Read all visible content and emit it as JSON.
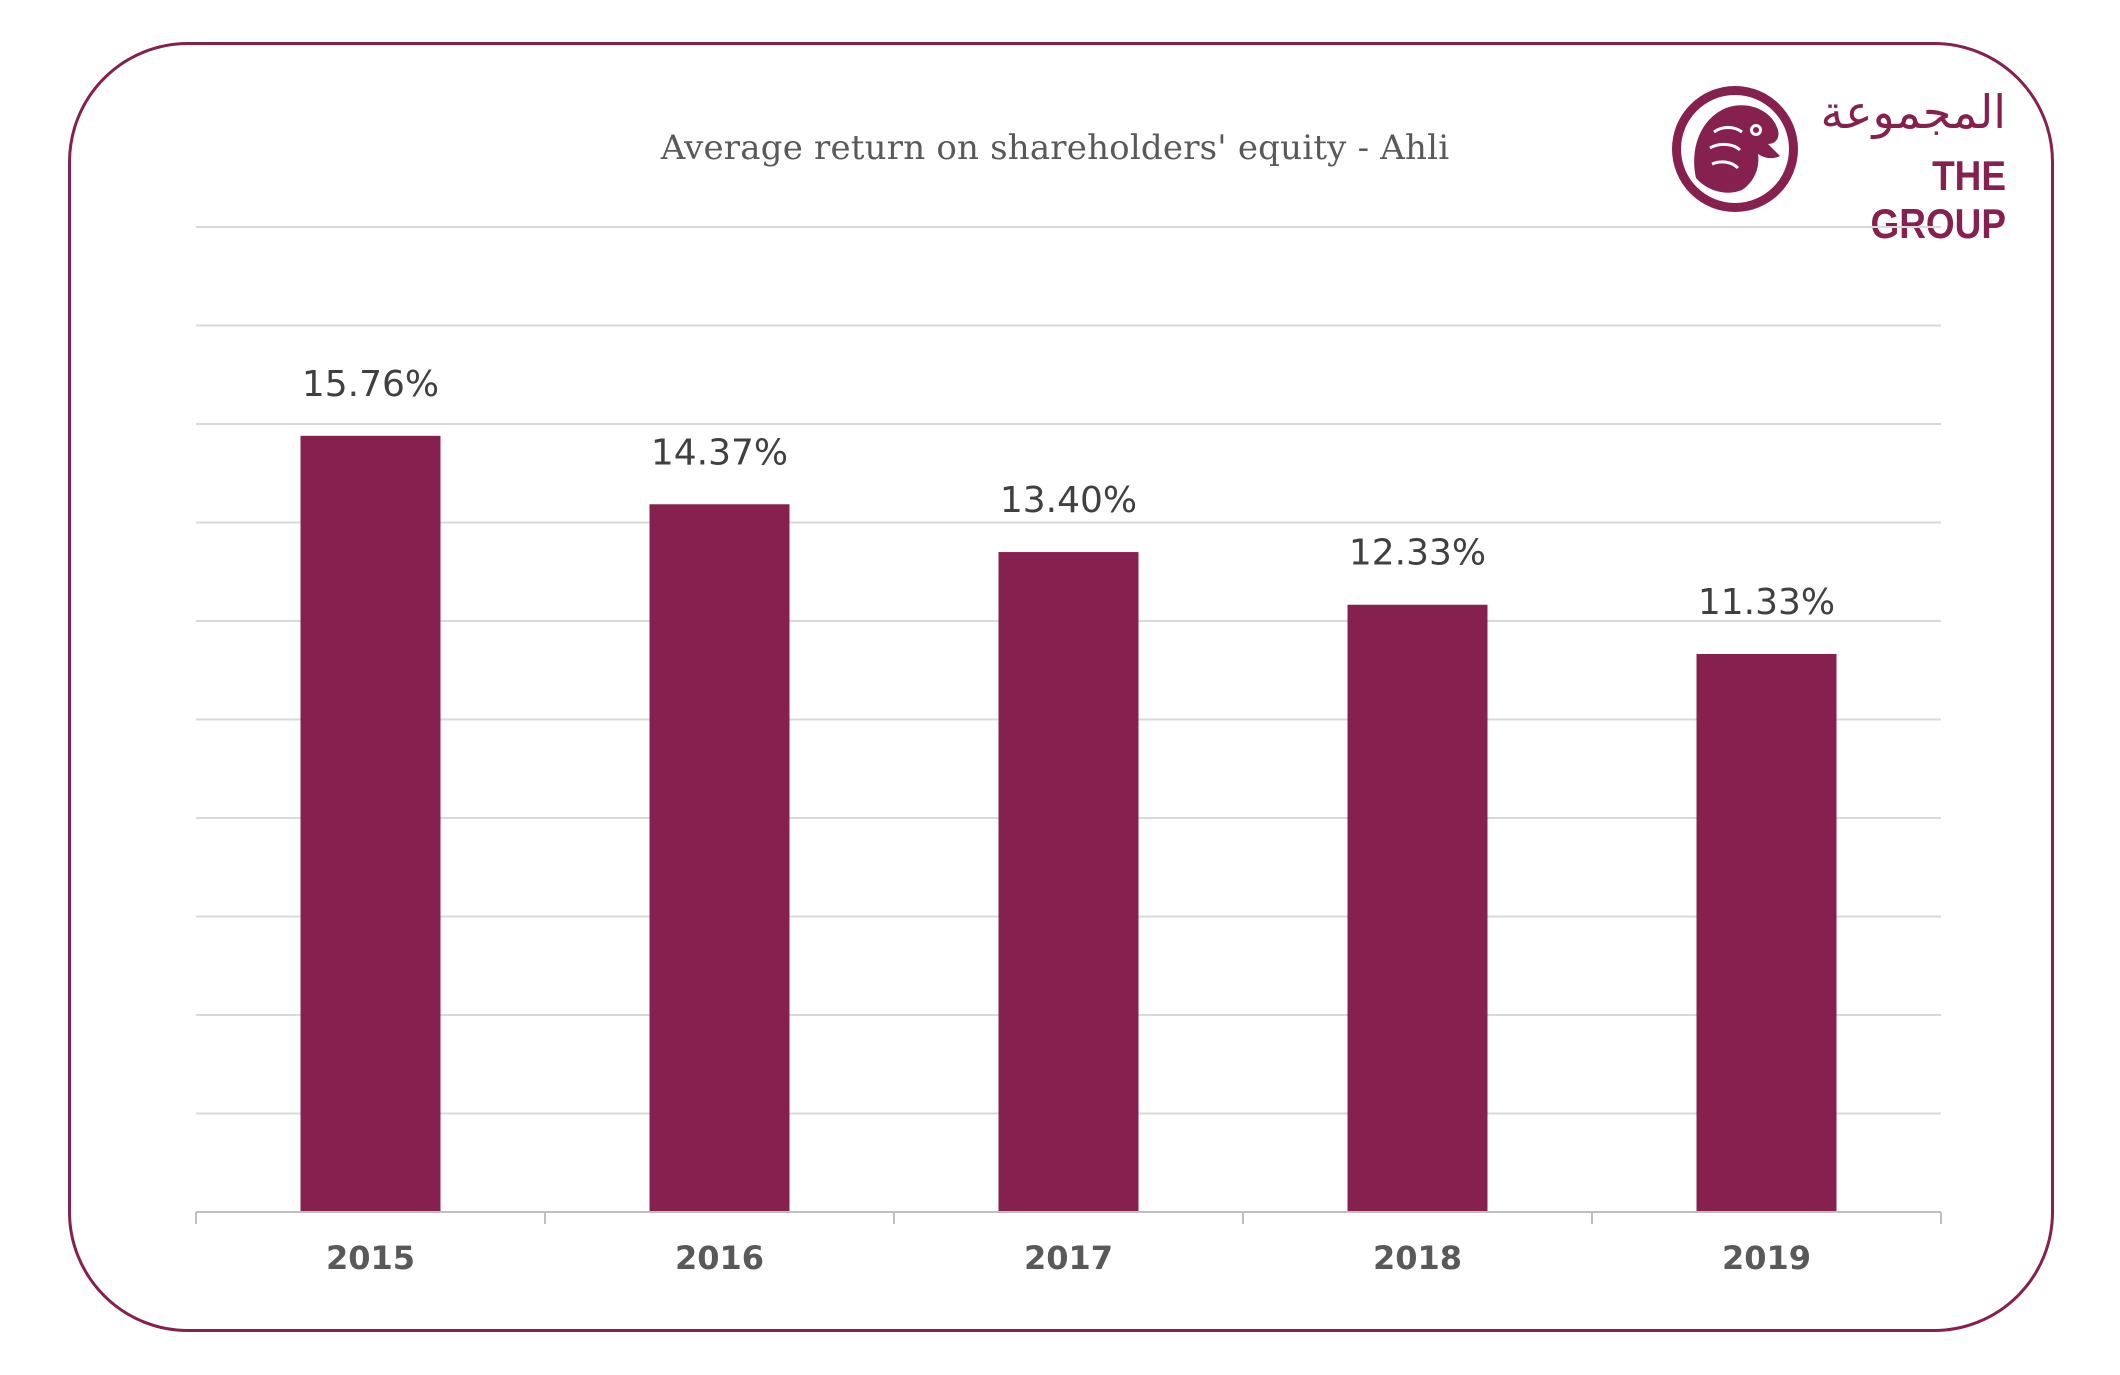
{
  "logo": {
    "arabic_text": "المجموعة",
    "english_text": "THE GROUP",
    "icon": "falcon-head-icon",
    "color": "#85204f"
  },
  "colors": {
    "bar": "#85204f",
    "frame": "#85204f",
    "gridline": "#d9d9d9"
  },
  "chart_data": {
    "type": "bar",
    "title": "Average return on shareholders' equity - Ahli",
    "categories": [
      "2015",
      "2016",
      "2017",
      "2018",
      "2019"
    ],
    "values": [
      15.76,
      14.37,
      13.4,
      12.33,
      11.33
    ],
    "data_labels": [
      "15.76%",
      "14.37%",
      "13.40%",
      "12.33%",
      "11.33%"
    ],
    "xlabel": "",
    "ylabel": "",
    "ylim": [
      0,
      20
    ],
    "y_gridlines": 10,
    "y_tick_labels_shown": false,
    "grid": true,
    "legend": "none"
  }
}
